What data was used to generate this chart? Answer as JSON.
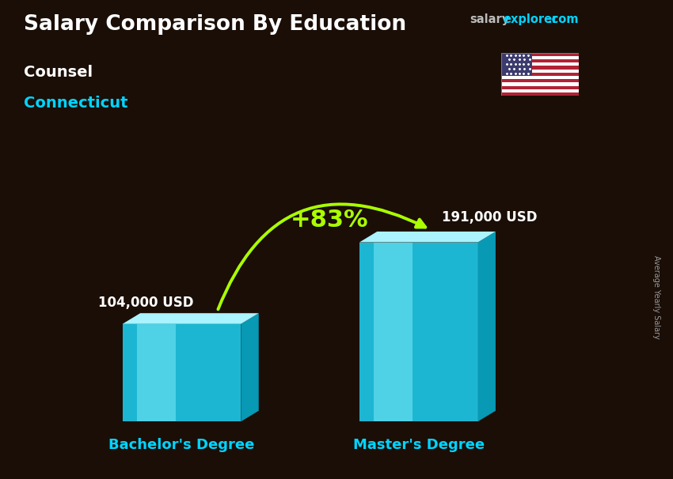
{
  "title_main": "Salary Comparison By Education",
  "subtitle1": "Counsel",
  "subtitle2": "Connecticut",
  "categories": [
    "Bachelor's Degree",
    "Master's Degree"
  ],
  "values": [
    104000,
    191000
  ],
  "value_labels": [
    "104,000 USD",
    "191,000 USD"
  ],
  "pct_change": "+83%",
  "bar_color_front": "#1ecfef",
  "bar_color_light": "#7ae8f8",
  "bar_color_top": "#aaf3ff",
  "bar_color_side": "#0899b5",
  "bar_color_dark_edge": "#056a80",
  "ylabel_rotated": "Average Yearly Salary",
  "bg_color": "#1a0e07",
  "title_color": "#ffffff",
  "subtitle1_color": "#ffffff",
  "subtitle2_color": "#00d4ff",
  "xlabel_color": "#00d4ff",
  "value_label_color": "#ffffff",
  "pct_color": "#aaff00",
  "arrow_color": "#aaff00",
  "salary_color": "#aaaaaa",
  "explorer_color": "#00d4ff",
  "figsize": [
    8.5,
    6.06
  ],
  "dpi": 100
}
